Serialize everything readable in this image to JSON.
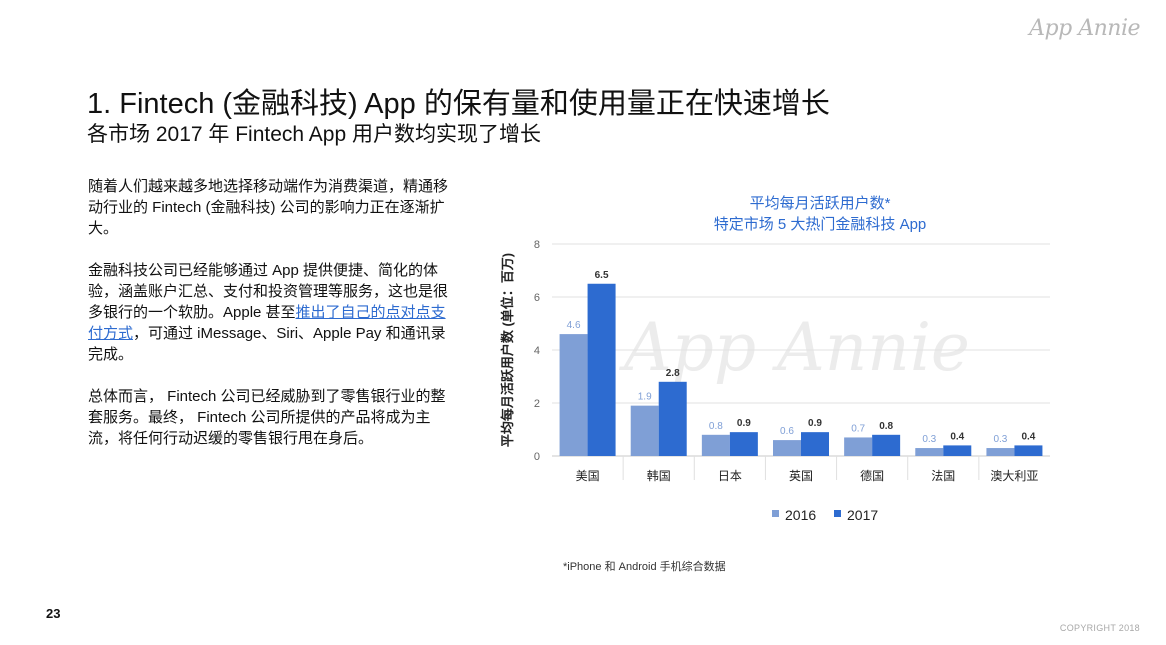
{
  "brand": {
    "logo_text": "App Annie",
    "watermark_text": "App Annie"
  },
  "header": {
    "title": "1. Fintech (金融科技) App 的保有量和使用量正在快速增长",
    "subtitle": "各市场 2017 年 Fintech App 用户数均实现了增长"
  },
  "body": {
    "p1": "随着人们越来越多地选择移动端作为消费渠道，精通移动行业的 Fintech (金融科技) 公司的影响力正在逐渐扩大。",
    "p2_before": "金融科技公司已经能够通过 App 提供便捷、简化的体验，涵盖账户汇总、支付和投资管理等服务，这也是很多银行的一个软肋。Apple 甚至",
    "p2_link": "推出了自己的点对点支付方式",
    "p2_after": "，可通过 iMessage、Siri、Apple Pay 和通讯录完成。",
    "p3": "总体而言， Fintech 公司已经威胁到了零售银行业的整套服务。最终， Fintech 公司所提供的产品将成为主流，将任何行动迟缓的零售银行甩在身后。"
  },
  "chart_data": {
    "type": "bar",
    "title": "平均每月活跃用户数*",
    "subtitle": "特定市场 5 大热门金融科技 App",
    "ylabel": "平均每月活跃用户数 (单位：百万)",
    "xlabel": "",
    "categories": [
      "美国",
      "韩国",
      "日本",
      "英国",
      "德国",
      "法国",
      "澳大利亚"
    ],
    "series": [
      {
        "name": "2016",
        "color": "#7f9fd6",
        "values": [
          4.6,
          1.9,
          0.8,
          0.6,
          0.7,
          0.3,
          0.3
        ]
      },
      {
        "name": "2017",
        "color": "#2d6bd0",
        "values": [
          6.5,
          2.8,
          0.9,
          0.9,
          0.8,
          0.4,
          0.4
        ]
      }
    ],
    "ylim": [
      0,
      8
    ],
    "yticks": [
      0,
      2,
      4,
      6,
      8
    ],
    "grid": true,
    "legend": "bottom"
  },
  "footnote": "*iPhone 和 Android 手机综合数据",
  "page_number": "23",
  "copyright": "COPYRIGHT 2018"
}
